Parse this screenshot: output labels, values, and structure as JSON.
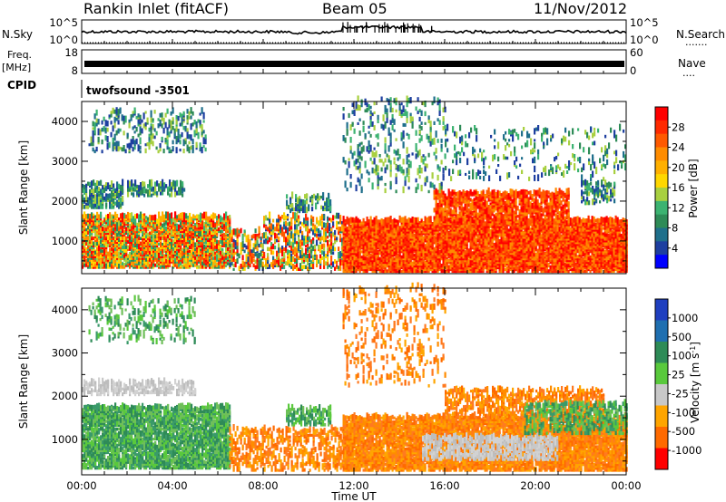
{
  "header": {
    "station": "Rankin Inlet (fitACF)",
    "beam": "Beam 05",
    "date": "11/Nov/2012"
  },
  "top_strips": {
    "nsky_label": "N.Sky",
    "nsky_ticks": [
      "10^5",
      "10^0"
    ],
    "nsearch_label": "N.Search",
    "nsearch_ticks": [
      "10^5",
      "10^0"
    ],
    "freq_label_1": "Freq.",
    "freq_label_2": "[MHz]",
    "freq_ticks": [
      "18",
      "8"
    ],
    "nave_label": "Nave",
    "nave_ticks": [
      "60",
      "0"
    ],
    "cpid_label": "CPID",
    "cpid_value": "twofsound -3501"
  },
  "colorbars": {
    "power": {
      "label": "Power [dB]",
      "ticks": [
        "28",
        "24",
        "20",
        "16",
        "12",
        "8",
        "4"
      ],
      "colors": [
        "#ff0000",
        "#ff2a00",
        "#ff5a00",
        "#ff8c00",
        "#ffb000",
        "#ffd700",
        "#a8d040",
        "#3cb371",
        "#2e8b57",
        "#1f6f8b",
        "#1e3fa0",
        "#0000ff"
      ]
    },
    "velocity": {
      "label": "Velocity [m s",
      "label_sup": "-1",
      "label_end": "]",
      "ticks": [
        "1000",
        "500",
        "100",
        "25",
        "-25",
        "-100",
        "-500",
        "-1000"
      ],
      "colors": [
        "#1f3fbf",
        "#1f6fb0",
        "#2e8b57",
        "#59c93c",
        "#c8c8c8",
        "#ffa500",
        "#ff6a00",
        "#ff0000"
      ]
    }
  },
  "chart_data": [
    {
      "type": "heatmap",
      "name": "power",
      "ylabel": "Slant Range [km]",
      "yticks": [
        1000,
        2000,
        3000,
        4000
      ],
      "ylim": [
        180,
        4500
      ],
      "xlim_hours": [
        0,
        24
      ],
      "legend_placement": "right colorbar"
    },
    {
      "type": "heatmap",
      "name": "velocity",
      "ylabel": "Slant Range [km]",
      "yticks": [
        1000,
        2000,
        3000,
        4000
      ],
      "ylim": [
        180,
        4500
      ],
      "xlim_hours": [
        0,
        24
      ],
      "xlabel": "Time UT",
      "xticks": [
        "00:00",
        "04:00",
        "08:00",
        "12:00",
        "16:00",
        "20:00",
        "00:00"
      ],
      "legend_placement": "right colorbar"
    }
  ]
}
